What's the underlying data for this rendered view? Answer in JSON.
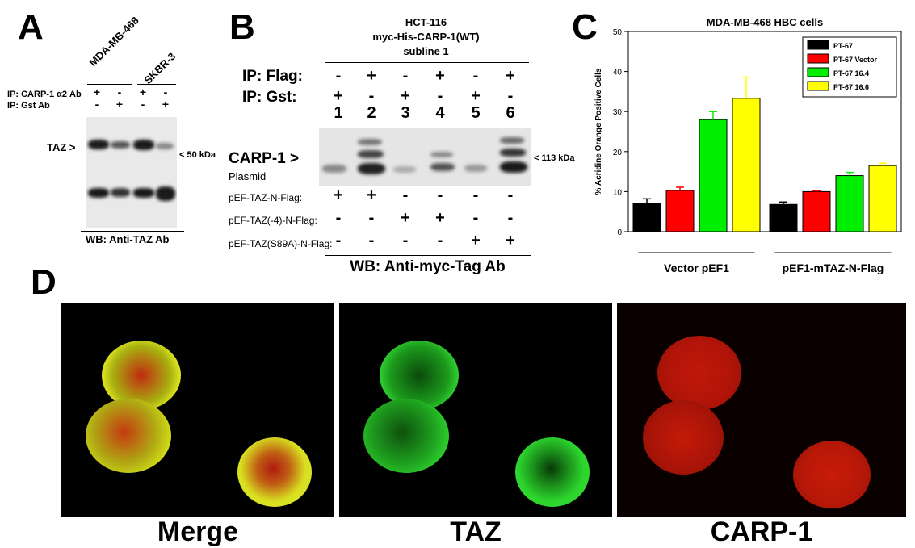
{
  "panel_labels": {
    "a": "A",
    "b": "B",
    "c": "C",
    "d": "D"
  },
  "panel_a": {
    "column_labels": [
      "MDA-MB-468",
      "SKBR-3"
    ],
    "ip_rows": [
      {
        "label": "IP: CARP-1 α2 Ab",
        "marks": [
          "+",
          "-",
          "+",
          "-"
        ]
      },
      {
        "label": "IP: Gst Ab",
        "marks": [
          "-",
          "+",
          "-",
          "+"
        ]
      }
    ],
    "band_label": "TAZ >",
    "size_marker": "< 50 kDa",
    "wb_label": "WB: Anti-TAZ Ab"
  },
  "panel_b": {
    "header_lines": [
      "HCT-116",
      "myc-His-CARP-1(WT)",
      "subline 1"
    ],
    "ip_rows": [
      {
        "label": "IP: Flag:",
        "marks": [
          "-",
          "+",
          "-",
          "+",
          "-",
          "+"
        ]
      },
      {
        "label": "IP: Gst:",
        "marks": [
          "+",
          "-",
          "+",
          "-",
          "+",
          "-"
        ]
      }
    ],
    "lane_numbers": [
      "1",
      "2",
      "3",
      "4",
      "5",
      "6"
    ],
    "band_label": "CARP-1 >",
    "size_marker": "< 113 kDa",
    "plasmid_label": "Plasmid",
    "plasmid_rows": [
      {
        "label": "pEF-TAZ-N-Flag:",
        "marks": [
          "+",
          "+",
          "-",
          "-",
          "-",
          "-"
        ]
      },
      {
        "label": "pEF-TAZ(-4)-N-Flag:",
        "marks": [
          "-",
          "-",
          "+",
          "+",
          "-",
          "-"
        ]
      },
      {
        "label": "pEF-TAZ(S89A)-N-Flag:",
        "marks": [
          "-",
          "-",
          "-",
          "-",
          "+",
          "+"
        ]
      }
    ],
    "wb_label": "WB: Anti-myc-Tag Ab"
  },
  "panel_c": {
    "chart_title": "MDA-MB-468 HBC cells",
    "group_labels": [
      "Vector pEF1",
      "pEF1-mTAZ-N-Flag"
    ]
  },
  "chart_data": {
    "type": "bar",
    "title": "MDA-MB-468 HBC cells",
    "xlabel": "",
    "ylabel": "% Acridine Orange Positive Cells",
    "ylim": [
      0,
      50
    ],
    "yticks": [
      0,
      10,
      20,
      30,
      40,
      50
    ],
    "categories": [
      "Vector pEF1",
      "pEF1-mTAZ-N-Flag"
    ],
    "series": [
      {
        "name": "PT-67",
        "color": "#000000",
        "values": [
          7.0,
          6.8
        ],
        "errors": [
          1.2,
          0.6
        ]
      },
      {
        "name": "PT-67 Vector",
        "color": "#ff0000",
        "values": [
          10.3,
          10.0
        ],
        "errors": [
          0.8,
          0.2
        ]
      },
      {
        "name": "PT-67 16.4",
        "color": "#00ee00",
        "values": [
          28.0,
          14.0
        ],
        "errors": [
          2.0,
          0.8
        ]
      },
      {
        "name": "PT-67 16.6",
        "color": "#ffff00",
        "values": [
          33.3,
          16.5
        ],
        "errors": [
          5.3,
          0.6
        ]
      }
    ],
    "legend_position": "top-right"
  },
  "panel_d": {
    "captions": [
      "Merge",
      "TAZ",
      "CARP-1"
    ]
  }
}
